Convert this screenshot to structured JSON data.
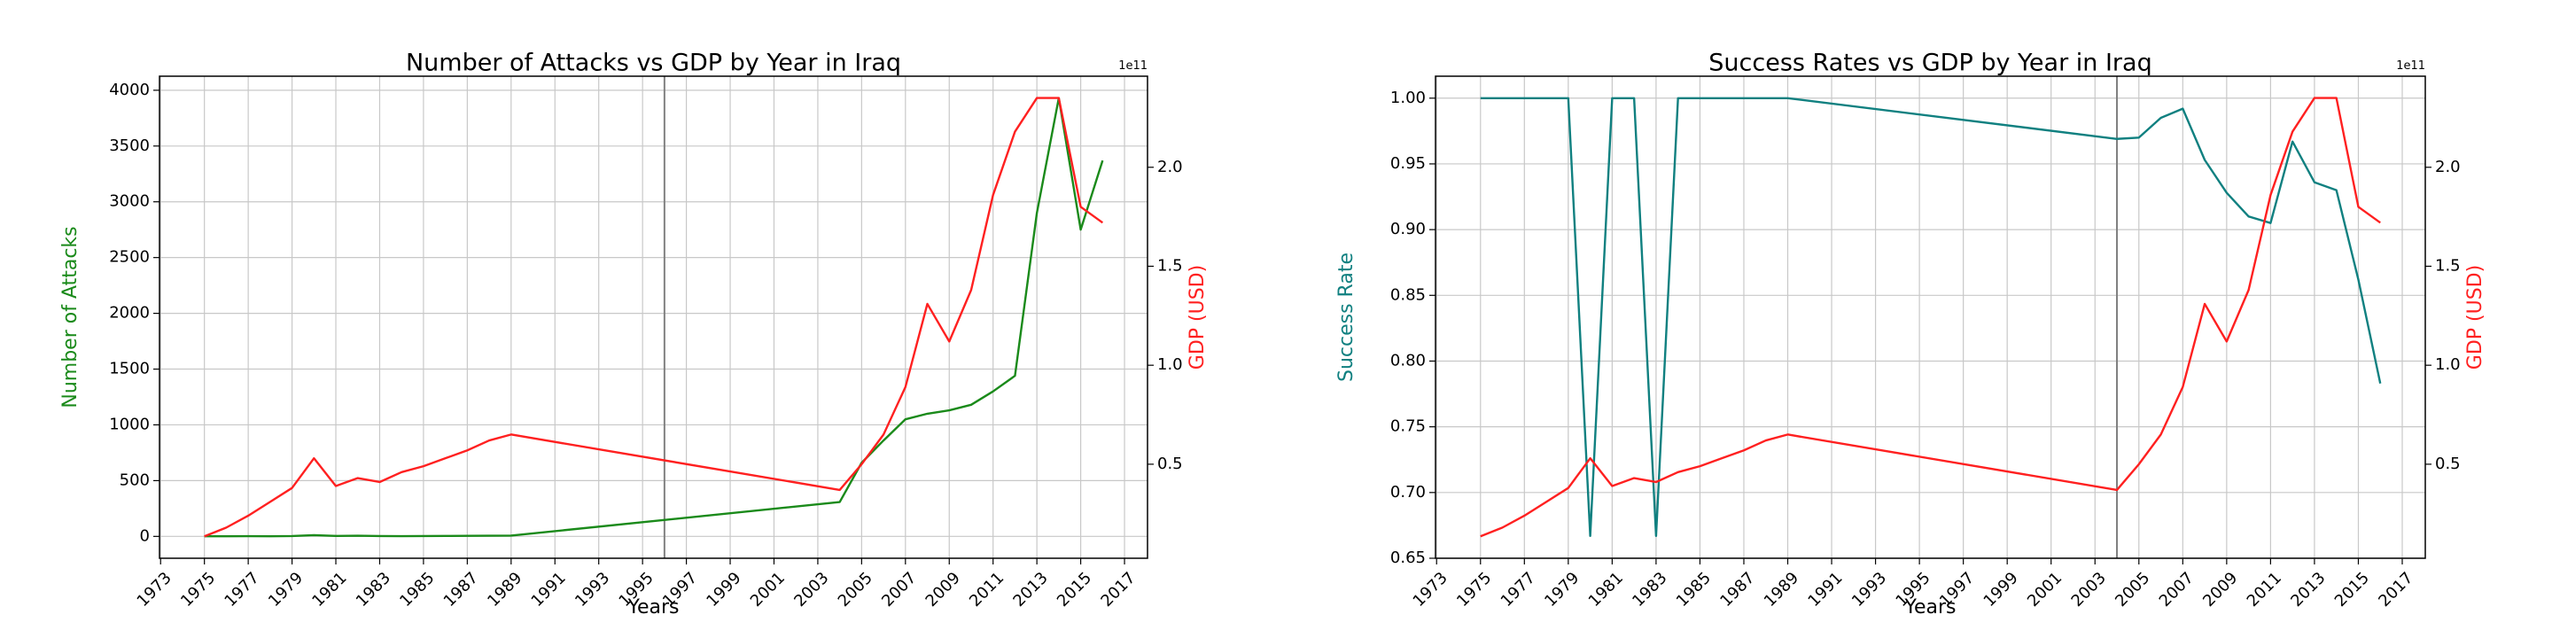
{
  "chart_data": [
    {
      "type": "line",
      "title": "Number of Attacks vs GDP by Year in Iraq",
      "x_label": "Years",
      "y_label": "Number of Attacks",
      "y2_label": "GDP (USD)",
      "y2_offset": "1e11",
      "x": [
        1975,
        1976,
        1977,
        1978,
        1979,
        1980,
        1981,
        1982,
        1983,
        1984,
        1985,
        1986,
        1987,
        1988,
        1989,
        2004,
        2005,
        2006,
        2007,
        2008,
        2009,
        2010,
        2011,
        2012,
        2013,
        2014,
        2015,
        2016
      ],
      "xlim": [
        1972.95,
        2018.05
      ],
      "xticks": [
        1973,
        1975,
        1977,
        1979,
        1981,
        1983,
        1985,
        1987,
        1989,
        1991,
        1993,
        1995,
        1997,
        1999,
        2001,
        2003,
        2005,
        2007,
        2009,
        2011,
        2013,
        2015,
        2017
      ],
      "ylim": [
        -196,
        4126
      ],
      "yticks": [
        0,
        500,
        1000,
        1500,
        2000,
        2500,
        3000,
        3500,
        4000
      ],
      "y2lim": [
        0.025,
        2.46
      ],
      "y2ticks": [
        0.5,
        {
          "value": 1.0,
          "label": "1.0"
        },
        1.5,
        {
          "value": 2.0,
          "label": "2.0"
        }
      ],
      "grid": true,
      "vline": 1996,
      "series": [
        {
          "color": "#1a8a1a",
          "values": [
            1,
            1,
            2,
            1,
            3,
            11,
            4,
            6,
            3,
            2,
            3,
            4,
            5,
            6,
            7,
            308,
            660,
            860,
            1050,
            1100,
            1130,
            1180,
            1300,
            1440,
            2900,
            3930,
            2750,
            3370
          ]
        },
        {
          "color": "#ff2020",
          "axis": "y2",
          "values": [
            0.136,
            0.18,
            0.24,
            0.31,
            0.38,
            0.53,
            0.39,
            0.43,
            0.41,
            0.46,
            0.49,
            0.53,
            0.57,
            0.62,
            0.65,
            0.37,
            0.5,
            0.65,
            0.89,
            1.31,
            1.12,
            1.38,
            1.86,
            2.18,
            2.35,
            2.35,
            1.8,
            1.72
          ]
        }
      ]
    },
    {
      "type": "line",
      "title": "Success Rates vs GDP by Year in Iraq",
      "x_label": "Years",
      "y_label": "Success Rate",
      "y2_label": "GDP (USD)",
      "y2_offset": "1e11",
      "x": [
        1975,
        1976,
        1977,
        1978,
        1979,
        1980,
        1981,
        1982,
        1983,
        1984,
        1985,
        1986,
        1987,
        1988,
        1989,
        2004,
        2005,
        2006,
        2007,
        2008,
        2009,
        2010,
        2011,
        2012,
        2013,
        2014,
        2015,
        2016
      ],
      "xlim": [
        1972.95,
        2018.05
      ],
      "xticks": [
        1973,
        1975,
        1977,
        1979,
        1981,
        1983,
        1985,
        1987,
        1989,
        1991,
        1993,
        1995,
        1997,
        1999,
        2001,
        2003,
        2005,
        2007,
        2009,
        2011,
        2013,
        2015,
        2017
      ],
      "ylim": [
        0.65,
        1.0167
      ],
      "yticks": [
        0.65,
        {
          "value": 0.7,
          "label": "0.70"
        },
        0.75,
        {
          "value": 0.8,
          "label": "0.80"
        },
        0.85,
        {
          "value": 0.9,
          "label": "0.90"
        },
        0.95,
        {
          "value": 1.0,
          "label": "1.00"
        }
      ],
      "y2lim": [
        0.025,
        2.46
      ],
      "y2ticks": [
        0.5,
        {
          "value": 1.0,
          "label": "1.0"
        },
        1.5,
        {
          "value": 2.0,
          "label": "2.0"
        }
      ],
      "grid": true,
      "vline": 2004,
      "series": [
        {
          "color": "#108080",
          "values": [
            1,
            1,
            1,
            1,
            1,
            0.667,
            1,
            1,
            0.667,
            1,
            1,
            1,
            1,
            1,
            1,
            0.969,
            0.97,
            0.985,
            0.992,
            0.953,
            0.928,
            0.91,
            0.905,
            0.967,
            0.936,
            0.93,
            0.862,
            0.783
          ]
        },
        {
          "color": "#ff2020",
          "axis": "y2",
          "values": [
            0.136,
            0.18,
            0.24,
            0.31,
            0.38,
            0.53,
            0.39,
            0.43,
            0.41,
            0.46,
            0.49,
            0.53,
            0.57,
            0.62,
            0.65,
            0.37,
            0.5,
            0.65,
            0.89,
            1.31,
            1.12,
            1.38,
            1.86,
            2.18,
            2.35,
            2.35,
            1.8,
            1.72
          ]
        }
      ]
    }
  ]
}
